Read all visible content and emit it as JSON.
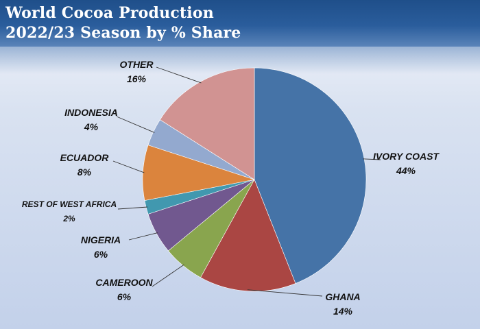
{
  "header": {
    "title_line1": "World Cocoa Production",
    "title_line2": "2022/23 Season by % Share"
  },
  "chart_data": {
    "type": "pie",
    "title": "World Cocoa Production 2022/23 Season by % Share",
    "slices": [
      {
        "label": "IVORY COAST",
        "value": 44,
        "value_label": "44%",
        "color": "#4573A7"
      },
      {
        "label": "GHANA",
        "value": 14,
        "value_label": "14%",
        "color": "#AA4643"
      },
      {
        "label": "CAMEROON",
        "value": 6,
        "value_label": "6%",
        "color": "#89A54E"
      },
      {
        "label": "NIGERIA",
        "value": 6,
        "value_label": "6%",
        "color": "#71588F"
      },
      {
        "label": "REST OF WEST AFRICA",
        "value": 2,
        "value_label": "2%",
        "color": "#4198AF"
      },
      {
        "label": "ECUADOR",
        "value": 8,
        "value_label": "8%",
        "color": "#DB843D"
      },
      {
        "label": "INDONESIA",
        "value": 4,
        "value_label": "4%",
        "color": "#93A9CF"
      },
      {
        "label": "OTHER",
        "value": 16,
        "value_label": "16%",
        "color": "#D19392"
      }
    ],
    "start": "12 o'clock",
    "direction": "clockwise"
  }
}
